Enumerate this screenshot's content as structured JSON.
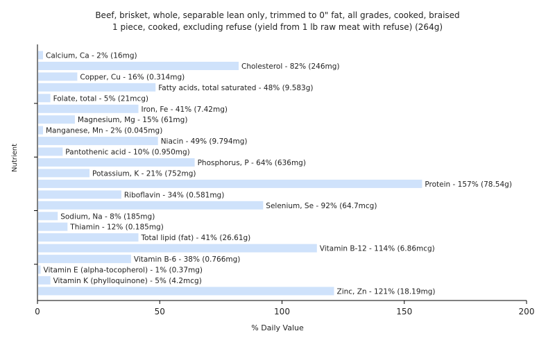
{
  "title_line1": "Beef, brisket, whole, separable lean only, trimmed to 0\" fat, all grades, cooked, braised",
  "title_line2": "1 piece, cooked, excluding refuse (yield from 1 lb raw meat with refuse) (264g)",
  "chart_data": {
    "type": "bar",
    "orientation": "horizontal",
    "xlabel": "% Daily Value",
    "ylabel": "Nutrient",
    "xlim": [
      0,
      200
    ],
    "xticks": [
      0,
      50,
      100,
      150,
      200
    ],
    "bar_color": "#cfe2fb",
    "grid": false,
    "categories": [
      "Calcium, Ca - 2% (16mg)",
      "Cholesterol - 82% (246mg)",
      "Copper, Cu - 16% (0.314mg)",
      "Fatty acids, total saturated - 48% (9.583g)",
      "Folate, total - 5% (21mcg)",
      "Iron, Fe - 41% (7.42mg)",
      "Magnesium, Mg - 15% (61mg)",
      "Manganese, Mn - 2% (0.045mg)",
      "Niacin - 49% (9.794mg)",
      "Pantothenic acid - 10% (0.950mg)",
      "Phosphorus, P - 64% (636mg)",
      "Potassium, K - 21% (752mg)",
      "Protein - 157% (78.54g)",
      "Riboflavin - 34% (0.581mg)",
      "Selenium, Se - 92% (64.7mcg)",
      "Sodium, Na - 8% (185mg)",
      "Thiamin - 12% (0.185mg)",
      "Total lipid (fat) - 41% (26.61g)",
      "Vitamin B-12 - 114% (6.86mcg)",
      "Vitamin B-6 - 38% (0.766mg)",
      "Vitamin E (alpha-tocopherol) - 1% (0.37mg)",
      "Vitamin K (phylloquinone) - 5% (4.2mcg)",
      "Zinc, Zn - 121% (18.19mg)"
    ],
    "values": [
      2,
      82,
      16,
      48,
      5,
      41,
      15,
      2,
      49,
      10,
      64,
      21,
      157,
      34,
      92,
      8,
      12,
      41,
      114,
      38,
      1,
      5,
      121
    ]
  }
}
